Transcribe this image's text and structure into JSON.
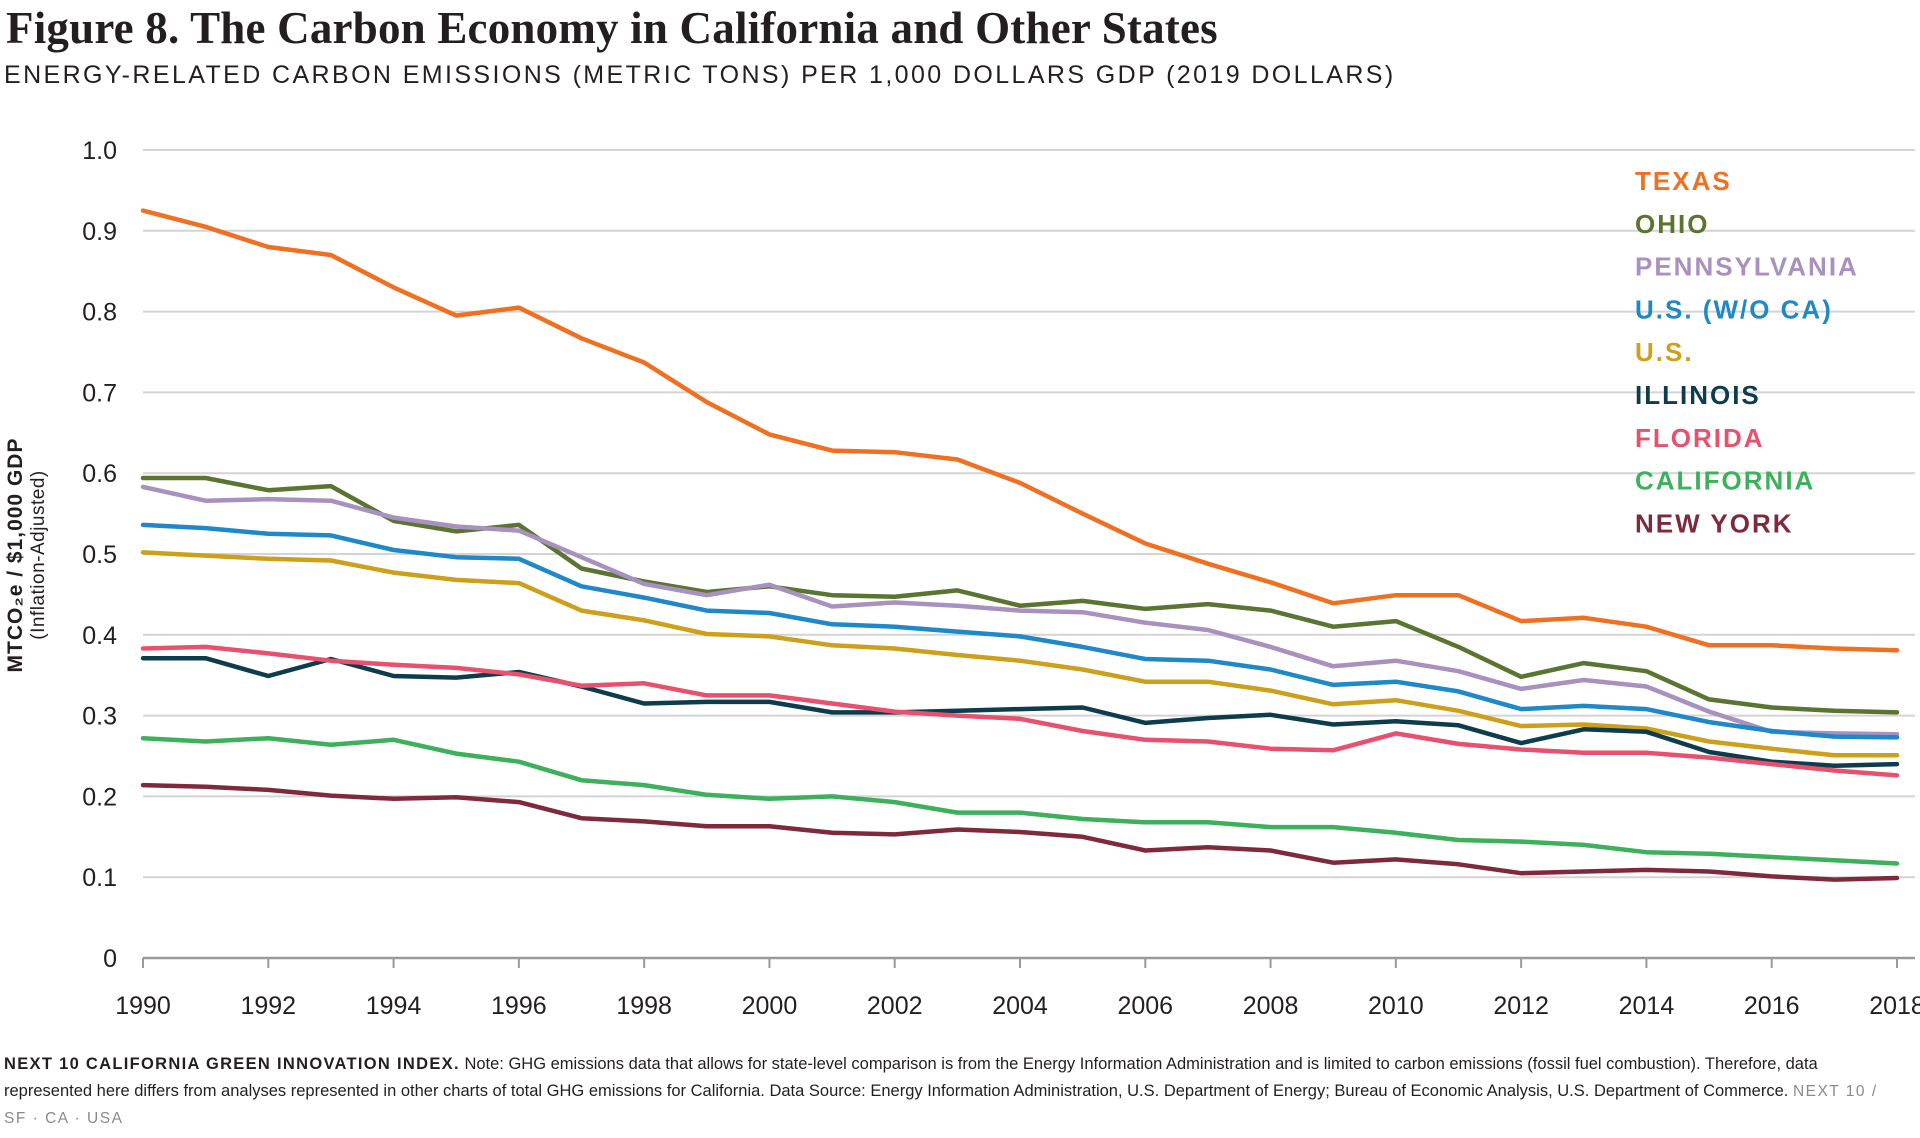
{
  "header": {
    "title": "Figure 8. The Carbon Economy in California and Other States",
    "subtitle": "ENERGY-RELATED CARBON EMISSIONS (METRIC TONS) PER 1,000 DOLLARS GDP (2019 DOLLARS)"
  },
  "chart_data": {
    "type": "line",
    "title": "Figure 8. The Carbon Economy in California and Other States",
    "subtitle": "ENERGY-RELATED CARBON EMISSIONS (METRIC TONS) PER 1,000 DOLLARS GDP (2019 DOLLARS)",
    "ylabel": "MTCO₂e / $1,000 GDP",
    "ylabel_sub": "(Inflation-Adjusted)",
    "xlabel": "",
    "ylim": [
      0,
      1.0
    ],
    "yticks": [
      "0",
      "0.1",
      "0.2",
      "0.3",
      "0.4",
      "0.5",
      "0.6",
      "0.7",
      "0.8",
      "0.9",
      "1.0"
    ],
    "xticks": [
      "1990",
      "1992",
      "1994",
      "1996",
      "1998",
      "2000",
      "2002",
      "2004",
      "2006",
      "2008",
      "2010",
      "2012",
      "2014",
      "2016",
      "2018"
    ],
    "x": [
      1990,
      1991,
      1992,
      1993,
      1994,
      1995,
      1996,
      1997,
      1998,
      1999,
      2000,
      2001,
      2002,
      2003,
      2004,
      2005,
      2006,
      2007,
      2008,
      2009,
      2010,
      2011,
      2012,
      2013,
      2014,
      2015,
      2016,
      2017,
      2018
    ],
    "grid": true,
    "legend_position": "top-right",
    "series": [
      {
        "name": "TEXAS",
        "color": "#f07022",
        "values": [
          0.925,
          0.905,
          0.88,
          0.87,
          0.83,
          0.795,
          0.805,
          0.767,
          0.737,
          0.688,
          0.648,
          0.628,
          0.626,
          0.617,
          0.588,
          0.55,
          0.513,
          0.488,
          0.465,
          0.439,
          0.449,
          0.449,
          0.417,
          0.421,
          0.41,
          0.387,
          0.387,
          0.383,
          0.381
        ]
      },
      {
        "name": "OHIO",
        "color": "#5a7431",
        "values": [
          0.594,
          0.594,
          0.579,
          0.584,
          0.541,
          0.528,
          0.536,
          0.482,
          0.466,
          0.453,
          0.46,
          0.449,
          0.447,
          0.455,
          0.436,
          0.442,
          0.432,
          0.438,
          0.43,
          0.41,
          0.417,
          0.385,
          0.348,
          0.365,
          0.355,
          0.32,
          0.31,
          0.306,
          0.304
        ]
      },
      {
        "name": "PENNSYLVANIA",
        "color": "#a890bf",
        "values": [
          0.583,
          0.566,
          0.568,
          0.566,
          0.545,
          0.534,
          0.529,
          0.496,
          0.463,
          0.449,
          0.462,
          0.435,
          0.44,
          0.436,
          0.43,
          0.428,
          0.415,
          0.406,
          0.385,
          0.361,
          0.368,
          0.355,
          0.333,
          0.344,
          0.336,
          0.305,
          0.28,
          0.278,
          0.277
        ]
      },
      {
        "name": "U.S. (W/O CA)",
        "color": "#1e88c8",
        "values": [
          0.536,
          0.532,
          0.525,
          0.523,
          0.505,
          0.496,
          0.494,
          0.46,
          0.446,
          0.43,
          0.427,
          0.413,
          0.41,
          0.404,
          0.398,
          0.385,
          0.37,
          0.368,
          0.357,
          0.338,
          0.342,
          0.33,
          0.308,
          0.312,
          0.308,
          0.292,
          0.281,
          0.274,
          0.273
        ]
      },
      {
        "name": "U.S.",
        "color": "#cca01a",
        "values": [
          0.502,
          0.498,
          0.494,
          0.492,
          0.477,
          0.468,
          0.464,
          0.43,
          0.418,
          0.401,
          0.398,
          0.387,
          0.383,
          0.375,
          0.368,
          0.357,
          0.342,
          0.342,
          0.331,
          0.314,
          0.319,
          0.306,
          0.287,
          0.289,
          0.284,
          0.268,
          0.259,
          0.251,
          0.251
        ]
      },
      {
        "name": "ILLINOIS",
        "color": "#0d3c4c",
        "values": [
          0.371,
          0.371,
          0.349,
          0.37,
          0.349,
          0.347,
          0.354,
          0.336,
          0.315,
          0.317,
          0.317,
          0.304,
          0.304,
          0.306,
          0.308,
          0.31,
          0.291,
          0.297,
          0.301,
          0.289,
          0.293,
          0.288,
          0.266,
          0.283,
          0.28,
          0.255,
          0.243,
          0.238,
          0.24
        ]
      },
      {
        "name": "FLORIDA",
        "color": "#e8506e",
        "values": [
          0.383,
          0.385,
          0.377,
          0.368,
          0.363,
          0.359,
          0.351,
          0.337,
          0.34,
          0.325,
          0.325,
          0.315,
          0.305,
          0.3,
          0.296,
          0.281,
          0.27,
          0.268,
          0.259,
          0.257,
          0.278,
          0.265,
          0.258,
          0.254,
          0.254,
          0.248,
          0.24,
          0.232,
          0.226
        ]
      },
      {
        "name": "CALIFORNIA",
        "color": "#3cb05a",
        "values": [
          0.272,
          0.268,
          0.272,
          0.264,
          0.27,
          0.253,
          0.243,
          0.22,
          0.214,
          0.202,
          0.197,
          0.2,
          0.193,
          0.18,
          0.18,
          0.172,
          0.168,
          0.168,
          0.162,
          0.162,
          0.155,
          0.146,
          0.144,
          0.14,
          0.131,
          0.129,
          0.125,
          0.121,
          0.117
        ]
      },
      {
        "name": "NEW YORK",
        "color": "#7f2a3c",
        "values": [
          0.214,
          0.212,
          0.208,
          0.201,
          0.197,
          0.199,
          0.193,
          0.173,
          0.169,
          0.163,
          0.163,
          0.155,
          0.153,
          0.159,
          0.156,
          0.15,
          0.133,
          0.137,
          0.133,
          0.118,
          0.122,
          0.116,
          0.105,
          0.107,
          0.109,
          0.107,
          0.101,
          0.097,
          0.099
        ]
      }
    ]
  },
  "note": {
    "brand": "NEXT 10 CALIFORNIA GREEN INNOVATION INDEX.",
    "text": "Note: GHG emissions data that allows for state-level comparison is from the Energy Information Administration and is limited to carbon emissions (fossil fuel combustion). Therefore,  data represented here differs from analyses represented in other charts of total GHG emissions for California. Data Source: Energy Information Administration, U.S. Department of Energy; Bureau of Economic Analysis, U.S. Department of Commerce.",
    "footer": "NEXT 10  /  SF · CA · USA"
  }
}
